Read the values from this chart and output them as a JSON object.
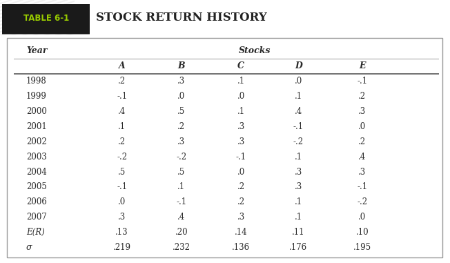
{
  "table_label": "TABLE 6-1",
  "table_title": "STOCK RETURN HISTORY",
  "col_header_year": "Year",
  "col_header_stocks": "Stocks",
  "stock_cols": [
    "A",
    "B",
    "C",
    "D",
    "E"
  ],
  "years": [
    "1998",
    "1999",
    "2000",
    "2001",
    "2002",
    "2003",
    "2004",
    "2005",
    "2006",
    "2007"
  ],
  "data": [
    [
      ".2",
      ".3",
      ".1",
      ".0",
      "-.1"
    ],
    [
      "-.1",
      ".0",
      ".0",
      ".1",
      ".2"
    ],
    [
      ".4",
      ".5",
      ".1",
      ".4",
      ".3"
    ],
    [
      ".1",
      ".2",
      ".3",
      "-.1",
      ".0"
    ],
    [
      ".2",
      ".3",
      ".3",
      "-.2",
      ".2"
    ],
    [
      "-.2",
      "-.2",
      "-.1",
      ".1",
      ".4"
    ],
    [
      ".5",
      ".5",
      ".0",
      ".3",
      ".3"
    ],
    [
      "-.1",
      ".1",
      ".2",
      ".3",
      "-.1"
    ],
    [
      ".0",
      "-.1",
      ".2",
      ".1",
      "-.2"
    ],
    [
      ".3",
      ".4",
      ".3",
      ".1",
      ".0"
    ]
  ],
  "er_label": "E(R̃)",
  "er_values": [
    ".13",
    ".20",
    ".14",
    ".11",
    ".10"
  ],
  "sigma_label": "σ",
  "sigma_values": [
    ".219",
    ".232",
    ".136",
    ".176",
    ".195"
  ],
  "bg_color": "#ffffff",
  "header_bg": "#1a1a1a",
  "header_text_color": "#99cc00",
  "title_color": "#222222",
  "table_border_color": "#999999",
  "body_text_color": "#2a2a2a",
  "hatch_bg": "#d0d0d0",
  "hatch_line_color": "#f0f0f0"
}
